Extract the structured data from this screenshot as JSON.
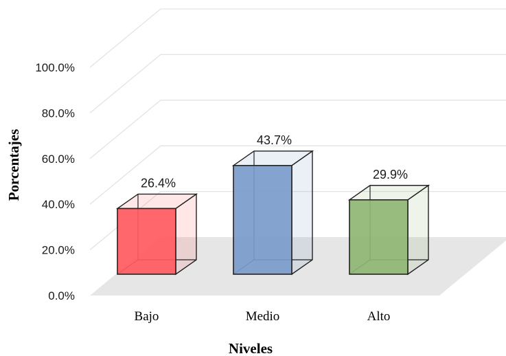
{
  "chart_data": {
    "type": "bar",
    "categories": [
      "Bajo",
      "Medio",
      "Alto"
    ],
    "values": [
      26.4,
      43.7,
      29.9
    ],
    "value_labels": [
      "26.4%",
      "43.7%",
      "29.9%"
    ],
    "xlabel": "Niveles",
    "ylabel": "Porcentajes",
    "ylim": [
      0,
      100
    ],
    "yticks": [
      "0.0%",
      "20.0%",
      "40.0%",
      "60.0%",
      "80.0%",
      "100.0%"
    ],
    "three_d": true,
    "grid": true,
    "colors": [
      "#ff5a5f",
      "#7b9bcb",
      "#8fb573"
    ]
  }
}
